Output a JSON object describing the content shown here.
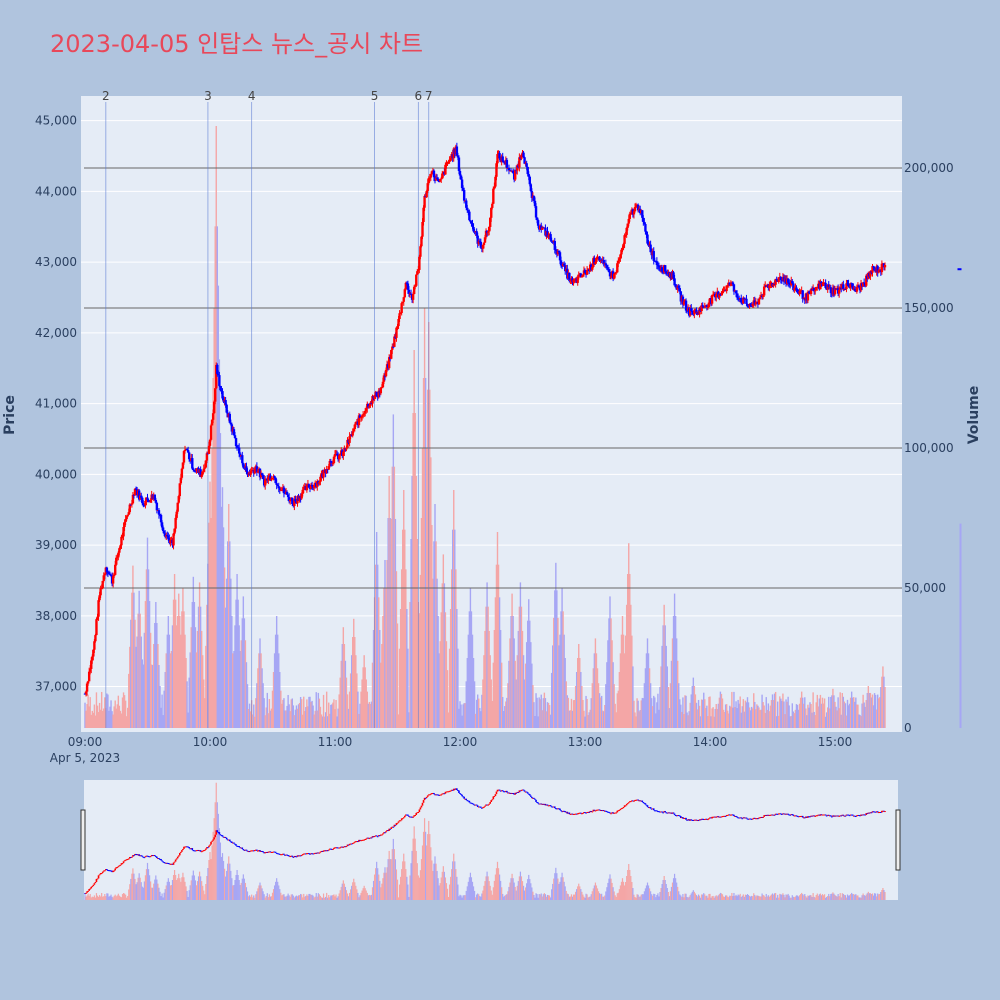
{
  "title": "2023-04-05 인탑스 뉴스_공시 차트",
  "colors": {
    "up": "#ff0000",
    "down": "#0000ff",
    "title": "#e8485a",
    "plot_bg": "#e5ecf6",
    "paper_bg": "#b0c4de"
  },
  "chart_data": {
    "type": "candlestick",
    "x_axis": {
      "ticks": [
        "09:00",
        "10:00",
        "11:00",
        "12:00",
        "13:00",
        "14:00",
        "15:00"
      ],
      "date_label": "Apr 5, 2023",
      "range": [
        "09:00",
        "15:30"
      ]
    },
    "y_price": {
      "label": "Price",
      "range": [
        36400,
        45250
      ],
      "ticks": [
        37000,
        38000,
        39000,
        40000,
        41000,
        42000,
        43000,
        44000,
        45000
      ],
      "tick_labels": [
        "37,000",
        "38,000",
        "39,000",
        "40,000",
        "41,000",
        "42,000",
        "43,000",
        "44,000",
        "45,000"
      ]
    },
    "y_volume": {
      "label": "Volume",
      "range": [
        0,
        220000
      ],
      "ticks": [
        0,
        50000,
        100000,
        150000,
        200000
      ],
      "tick_labels": [
        "0",
        "50,000",
        "100,000",
        "150,000",
        "200,000"
      ]
    },
    "price_path": [
      [
        "09:00",
        36900
      ],
      [
        "09:04",
        37500
      ],
      [
        "09:07",
        38300
      ],
      [
        "09:10",
        38700
      ],
      [
        "09:13",
        38500
      ],
      [
        "09:16",
        38900
      ],
      [
        "09:20",
        39400
      ],
      [
        "09:24",
        39800
      ],
      [
        "09:28",
        39600
      ],
      [
        "09:33",
        39700
      ],
      [
        "09:38",
        39200
      ],
      [
        "09:42",
        39000
      ],
      [
        "09:45",
        39700
      ],
      [
        "09:48",
        40400
      ],
      [
        "09:52",
        40100
      ],
      [
        "09:56",
        40000
      ],
      [
        "09:59",
        40300
      ],
      [
        "10:02",
        41000
      ],
      [
        "10:03",
        41500
      ],
      [
        "10:06",
        41100
      ],
      [
        "10:10",
        40700
      ],
      [
        "10:14",
        40300
      ],
      [
        "10:18",
        40000
      ],
      [
        "10:22",
        40100
      ],
      [
        "10:26",
        39900
      ],
      [
        "10:30",
        40000
      ],
      [
        "10:34",
        39800
      ],
      [
        "10:40",
        39600
      ],
      [
        "10:46",
        39800
      ],
      [
        "10:52",
        39900
      ],
      [
        "10:58",
        40200
      ],
      [
        "11:04",
        40300
      ],
      [
        "11:10",
        40700
      ],
      [
        "11:16",
        41000
      ],
      [
        "11:22",
        41200
      ],
      [
        "11:26",
        41600
      ],
      [
        "11:30",
        42100
      ],
      [
        "11:34",
        42700
      ],
      [
        "11:37",
        42500
      ],
      [
        "11:40",
        42900
      ],
      [
        "11:43",
        43900
      ],
      [
        "11:46",
        44300
      ],
      [
        "11:50",
        44100
      ],
      [
        "11:54",
        44400
      ],
      [
        "11:58",
        44600
      ],
      [
        "12:02",
        43900
      ],
      [
        "12:06",
        43500
      ],
      [
        "12:10",
        43200
      ],
      [
        "12:14",
        43500
      ],
      [
        "12:18",
        44500
      ],
      [
        "12:22",
        44400
      ],
      [
        "12:26",
        44200
      ],
      [
        "12:30",
        44600
      ],
      [
        "12:34",
        44000
      ],
      [
        "12:38",
        43500
      ],
      [
        "12:42",
        43400
      ],
      [
        "12:46",
        43200
      ],
      [
        "12:50",
        42900
      ],
      [
        "12:54",
        42700
      ],
      [
        "12:58",
        42800
      ],
      [
        "13:02",
        42900
      ],
      [
        "13:06",
        43100
      ],
      [
        "13:10",
        42900
      ],
      [
        "13:14",
        42800
      ],
      [
        "13:18",
        43200
      ],
      [
        "13:22",
        43700
      ],
      [
        "13:26",
        43800
      ],
      [
        "13:30",
        43300
      ],
      [
        "13:34",
        43000
      ],
      [
        "13:38",
        42900
      ],
      [
        "13:42",
        42800
      ],
      [
        "13:46",
        42500
      ],
      [
        "13:50",
        42300
      ],
      [
        "13:54",
        42300
      ],
      [
        "13:58",
        42400
      ],
      [
        "14:02",
        42500
      ],
      [
        "14:06",
        42600
      ],
      [
        "14:10",
        42700
      ],
      [
        "14:14",
        42500
      ],
      [
        "14:18",
        42400
      ],
      [
        "14:22",
        42400
      ],
      [
        "14:26",
        42600
      ],
      [
        "14:30",
        42700
      ],
      [
        "14:34",
        42800
      ],
      [
        "14:38",
        42700
      ],
      [
        "14:42",
        42600
      ],
      [
        "14:46",
        42500
      ],
      [
        "14:50",
        42600
      ],
      [
        "14:54",
        42700
      ],
      [
        "14:58",
        42600
      ],
      [
        "15:02",
        42600
      ],
      [
        "15:06",
        42700
      ],
      [
        "15:10",
        42600
      ],
      [
        "15:14",
        42700
      ],
      [
        "15:18",
        42900
      ],
      [
        "15:22",
        42900
      ],
      [
        "15:24",
        43000
      ]
    ],
    "dangling_point": [
      "15:30",
      42900
    ],
    "volume_peaks": [
      [
        "09:23",
        58000
      ],
      [
        "09:26",
        49000
      ],
      [
        "09:30",
        68000
      ],
      [
        "09:34",
        45000
      ],
      [
        "09:40",
        40000
      ],
      [
        "09:43",
        55000
      ],
      [
        "09:45",
        48000
      ],
      [
        "09:47",
        50000
      ],
      [
        "09:52",
        54000
      ],
      [
        "09:55",
        52000
      ],
      [
        "10:00",
        88000
      ],
      [
        "10:02",
        150000
      ],
      [
        "10:03",
        215000
      ],
      [
        "10:04",
        158000
      ],
      [
        "10:06",
        86000
      ],
      [
        "10:09",
        80000
      ],
      [
        "10:13",
        55000
      ],
      [
        "10:16",
        47000
      ],
      [
        "10:24",
        32000
      ],
      [
        "10:32",
        40000
      ],
      [
        "11:04",
        36000
      ],
      [
        "11:09",
        39000
      ],
      [
        "11:14",
        26000
      ],
      [
        "11:20",
        70000
      ],
      [
        "11:24",
        60000
      ],
      [
        "11:26",
        90000
      ],
      [
        "11:28",
        112000
      ],
      [
        "11:33",
        85000
      ],
      [
        "11:38",
        135000
      ],
      [
        "11:42",
        82000
      ],
      [
        "11:43",
        150000
      ],
      [
        "11:45",
        145000
      ],
      [
        "11:48",
        80000
      ],
      [
        "11:52",
        62000
      ],
      [
        "11:57",
        85000
      ],
      [
        "12:05",
        50000
      ],
      [
        "12:13",
        52000
      ],
      [
        "12:18",
        70000
      ],
      [
        "12:25",
        48000
      ],
      [
        "12:29",
        52000
      ],
      [
        "12:33",
        46000
      ],
      [
        "12:46",
        59000
      ],
      [
        "12:49",
        50000
      ],
      [
        "12:57",
        30000
      ],
      [
        "13:05",
        32000
      ],
      [
        "13:12",
        47000
      ],
      [
        "13:18",
        40000
      ],
      [
        "13:21",
        66000
      ],
      [
        "13:30",
        32000
      ],
      [
        "13:38",
        44000
      ],
      [
        "13:43",
        48000
      ],
      [
        "13:52",
        18000
      ],
      [
        "14:05",
        13000
      ],
      [
        "14:18",
        11000
      ],
      [
        "14:30",
        12000
      ],
      [
        "14:44",
        13000
      ],
      [
        "14:59",
        14000
      ],
      [
        "15:08",
        13000
      ],
      [
        "15:16",
        15000
      ],
      [
        "15:23",
        22000
      ],
      [
        "15:30",
        73000
      ]
    ],
    "annotations": [
      {
        "label": "2",
        "time": "09:10"
      },
      {
        "label": "3",
        "time": "09:59"
      },
      {
        "label": "4",
        "time": "10:20"
      },
      {
        "label": "5",
        "time": "11:19"
      },
      {
        "label": "6",
        "time": "11:40"
      },
      {
        "label": "7",
        "time": "11:45"
      }
    ],
    "secondary_gridlines": [
      0,
      50000,
      100000,
      150000,
      200000
    ],
    "range_slider": true
  }
}
